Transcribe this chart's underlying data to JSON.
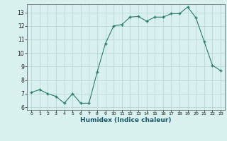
{
  "x": [
    0,
    1,
    2,
    3,
    4,
    5,
    6,
    7,
    8,
    9,
    10,
    11,
    12,
    13,
    14,
    15,
    16,
    17,
    18,
    19,
    20,
    21,
    22,
    23
  ],
  "y": [
    7.1,
    7.3,
    7.0,
    6.8,
    6.3,
    7.0,
    6.3,
    6.3,
    8.6,
    10.7,
    12.0,
    12.1,
    12.65,
    12.7,
    12.35,
    12.65,
    12.65,
    12.9,
    12.9,
    13.4,
    12.6,
    10.85,
    9.1,
    8.7
  ],
  "line_color": "#2d7a6a",
  "marker_color": "#2d7a6a",
  "bg_color": "#d8f0ee",
  "grid_color": "#b8d8d4",
  "xlabel": "Humidex (Indice chaleur)",
  "xlabel_color": "#1a5a6a",
  "ylim": [
    5.8,
    13.6
  ],
  "xlim": [
    -0.5,
    23.5
  ],
  "yticks": [
    6,
    7,
    8,
    9,
    10,
    11,
    12,
    13
  ],
  "xticks": [
    0,
    1,
    2,
    3,
    4,
    5,
    6,
    7,
    8,
    9,
    10,
    11,
    12,
    13,
    14,
    15,
    16,
    17,
    18,
    19,
    20,
    21,
    22,
    23
  ]
}
